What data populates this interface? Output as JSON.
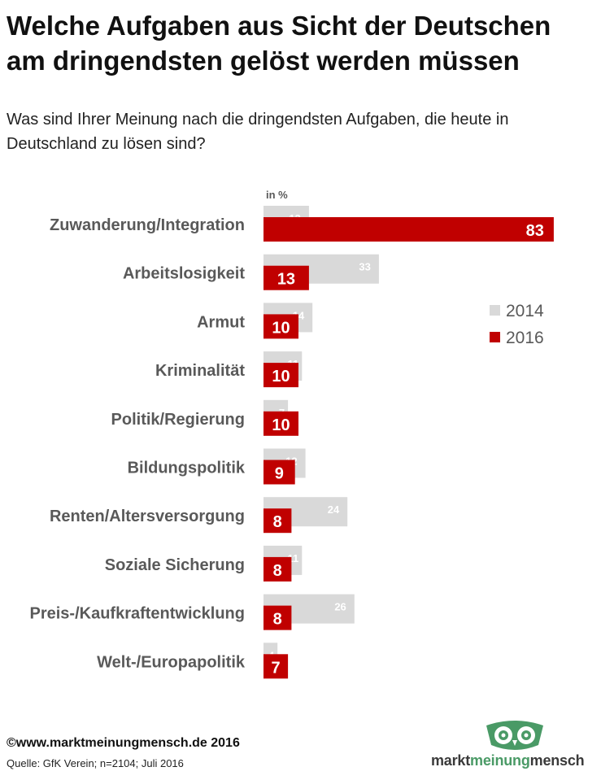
{
  "title": {
    "line1": "Welche Aufgaben aus Sicht der Deutschen",
    "line2": "am dringendsten gelöst werden müssen"
  },
  "subtitle": {
    "line1": "Was sind Ihrer Meinung nach die dringendsten Aufgaben, die heute in",
    "line2": "Deutschland zu lösen sind?"
  },
  "chart_data": {
    "type": "bar",
    "orientation": "horizontal",
    "unit_label": "in %",
    "categories": [
      "Zuwanderung/Integration",
      "Arbeitslosigkeit",
      "Armut",
      "Kriminalität",
      "Politik/Regierung",
      "Bildungspolitik",
      "Renten/Altersversorgung",
      "Soziale Sicherung",
      "Preis-/Kaufkraftentwicklung",
      "Welt-/Europapolitik"
    ],
    "series": [
      {
        "name": "2014",
        "color": "#d9d9d9",
        "values": [
          13,
          33,
          14,
          11,
          7,
          12,
          24,
          11,
          26,
          4
        ]
      },
      {
        "name": "2016",
        "color": "#c00000",
        "values": [
          83,
          13,
          10,
          10,
          10,
          9,
          8,
          8,
          8,
          7
        ]
      }
    ],
    "legend_position": "right",
    "grid": false
  },
  "footer": {
    "copyright": "©www.marktmeinungmensch.de 2016",
    "source": "Quelle: GfK Verein; n=2104; Juli 2016"
  },
  "logo": {
    "part1": "markt",
    "part2": "meinung",
    "part3": "mensch",
    "icon": "owl-icon",
    "color": "#4a9a66"
  }
}
